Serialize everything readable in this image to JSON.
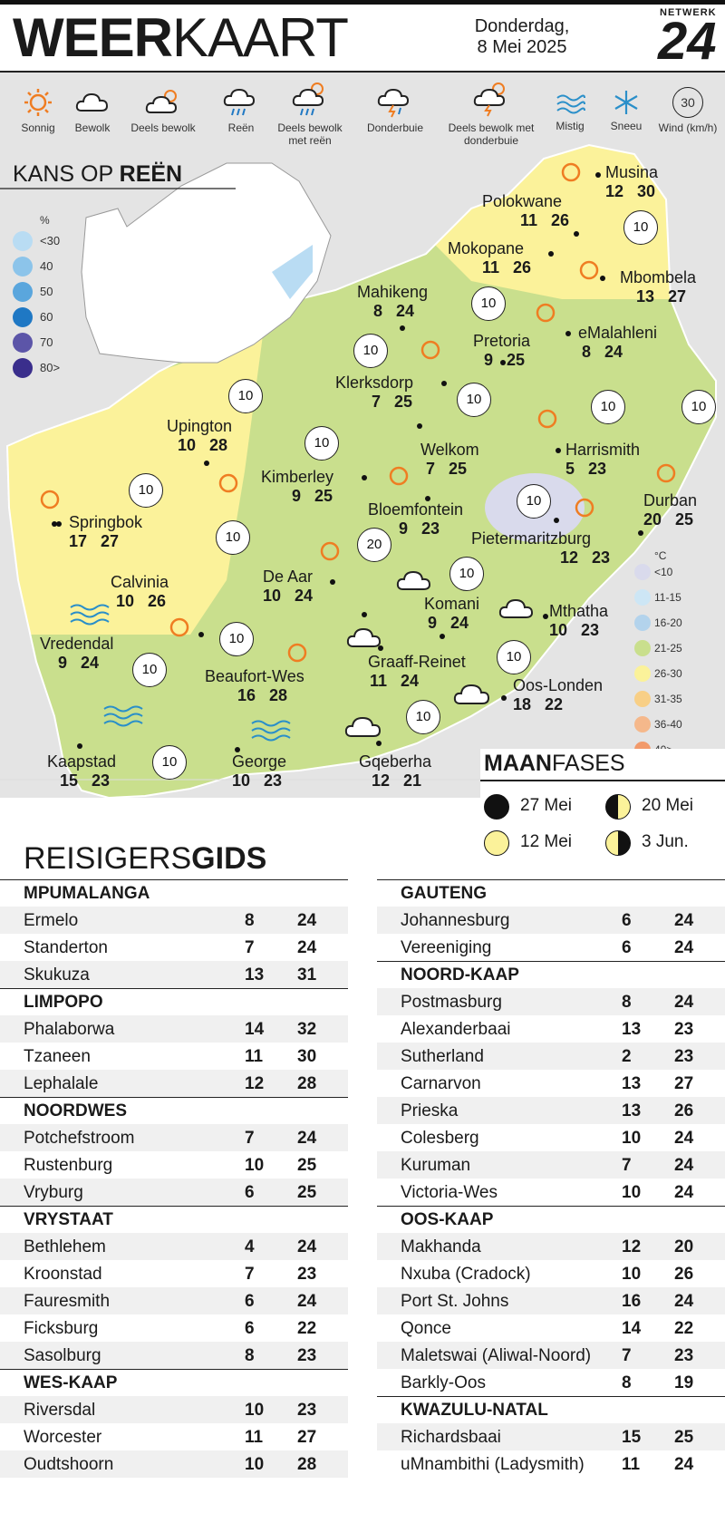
{
  "header": {
    "title_bold": "WEER",
    "title_light": "KAART",
    "date_line1": "Donderdag,",
    "date_line2": "8 Mei 2025",
    "logo_top": "NETWERK",
    "logo_num": "24"
  },
  "legend": [
    {
      "icon": "sun-icon",
      "label": "Sonnig"
    },
    {
      "icon": "cloud-icon",
      "label": "Bewolk"
    },
    {
      "icon": "partly-cloudy-icon",
      "label": "Deels bewolk"
    },
    {
      "icon": "rain-icon",
      "label": "Reën"
    },
    {
      "icon": "partly-cloudy-rain-icon",
      "label": "Deels bewolk met reën"
    },
    {
      "icon": "thunderstorm-icon",
      "label": "Donderbuie"
    },
    {
      "icon": "partly-cloudy-thunder-icon",
      "label": "Deels bewolk met donderbuie"
    },
    {
      "icon": "mist-icon",
      "label": "Mistig"
    },
    {
      "icon": "snow-icon",
      "label": "Sneeu"
    },
    {
      "icon": "wind-icon",
      "label": "Wind (km/h)",
      "value": "30"
    }
  ],
  "rain_chance": {
    "title_light": "KANS OP ",
    "title_bold": "REËN",
    "unit": "%",
    "scale": [
      {
        "label": "<30",
        "color": "#b9dcf3"
      },
      {
        "label": "40",
        "color": "#8cc4ea"
      },
      {
        "label": "50",
        "color": "#5aa6dd"
      },
      {
        "label": "60",
        "color": "#1f78c4"
      },
      {
        "label": "70",
        "color": "#5c55a8"
      },
      {
        "label": "80>",
        "color": "#3a2e8c"
      }
    ]
  },
  "cities": [
    {
      "name": "Musina",
      "min": "12",
      "max": "30"
    },
    {
      "name": "Polokwane",
      "min": "11",
      "max": "26"
    },
    {
      "name": "Mokopane",
      "min": "11",
      "max": "26"
    },
    {
      "name": "Mbombela",
      "min": "13",
      "max": "27"
    },
    {
      "name": "Mahikeng",
      "min": "8",
      "max": "24"
    },
    {
      "name": "Pretoria",
      "min": "9",
      "max": "25"
    },
    {
      "name": "eMalahleni",
      "min": "8",
      "max": "24"
    },
    {
      "name": "Klerksdorp",
      "min": "7",
      "max": "25"
    },
    {
      "name": "Upington",
      "min": "10",
      "max": "28"
    },
    {
      "name": "Welkom",
      "min": "7",
      "max": "25"
    },
    {
      "name": "Harrismith",
      "min": "5",
      "max": "23"
    },
    {
      "name": "Kimberley",
      "min": "9",
      "max": "25"
    },
    {
      "name": "Springbok",
      "min": "17",
      "max": "27"
    },
    {
      "name": "Bloemfontein",
      "min": "9",
      "max": "23"
    },
    {
      "name": "Durban",
      "min": "20",
      "max": "25"
    },
    {
      "name": "Pietermaritzburg",
      "min": "12",
      "max": "23"
    },
    {
      "name": "Calvinia",
      "min": "10",
      "max": "26"
    },
    {
      "name": "De Aar",
      "min": "10",
      "max": "24"
    },
    {
      "name": "Komani",
      "min": "9",
      "max": "24"
    },
    {
      "name": "Mthatha",
      "min": "10",
      "max": "23"
    },
    {
      "name": "Vredendal",
      "min": "9",
      "max": "24"
    },
    {
      "name": "Graaff-Reinet",
      "min": "11",
      "max": "24"
    },
    {
      "name": "Beaufort-Wes",
      "min": "16",
      "max": "28"
    },
    {
      "name": "Oos-Londen",
      "min": "18",
      "max": "22"
    },
    {
      "name": "Kaapstad",
      "min": "15",
      "max": "23"
    },
    {
      "name": "George",
      "min": "10",
      "max": "23"
    },
    {
      "name": "Gqeberha",
      "min": "12",
      "max": "21"
    }
  ],
  "wind_speed": "10",
  "wind_speed_highlight": "20",
  "temperature_scale": {
    "unit": "°C",
    "items": [
      {
        "label": "<10",
        "color": "#d9daec"
      },
      {
        "label": "11-15",
        "color": "#cde6f5"
      },
      {
        "label": "16-20",
        "color": "#b3d3ec"
      },
      {
        "label": "21-25",
        "color": "#c9df8d"
      },
      {
        "label": "26-30",
        "color": "#fbf29a"
      },
      {
        "label": "31-35",
        "color": "#f8cf86"
      },
      {
        "label": "36-40",
        "color": "#f5b88b"
      },
      {
        "label": "40>",
        "color": "#f29a6b"
      }
    ]
  },
  "moon": {
    "title_bold": "MAAN",
    "title_light": "FASES",
    "phases": [
      {
        "phase": "new-moon",
        "date": "27 Mei"
      },
      {
        "phase": "first-quarter",
        "date": "20 Mei"
      },
      {
        "phase": "full-moon",
        "date": "12 Mei"
      },
      {
        "phase": "last-quarter",
        "date": "3 Jun."
      }
    ]
  },
  "guide": {
    "title_light": "REISIGERS",
    "title_bold": "GIDS",
    "left": [
      {
        "province": "MPUMALANGA",
        "rows": [
          [
            "Ermelo",
            "8",
            "24"
          ],
          [
            "Standerton",
            "7",
            "24"
          ],
          [
            "Skukuza",
            "13",
            "31"
          ]
        ]
      },
      {
        "province": "LIMPOPO",
        "rows": [
          [
            "Phalaborwa",
            "14",
            "32"
          ],
          [
            "Tzaneen",
            "11",
            "30"
          ],
          [
            "Lephalale",
            "12",
            "28"
          ]
        ]
      },
      {
        "province": "NOORDWES",
        "rows": [
          [
            "Potchefstroom",
            "7",
            "24"
          ],
          [
            "Rustenburg",
            "10",
            "25"
          ],
          [
            "Vryburg",
            "6",
            "25"
          ]
        ]
      },
      {
        "province": "VRYSTAAT",
        "rows": [
          [
            "Bethlehem",
            "4",
            "24"
          ],
          [
            "Kroonstad",
            "7",
            "23"
          ],
          [
            "Fauresmith",
            "6",
            "24"
          ],
          [
            "Ficksburg",
            "6",
            "22"
          ],
          [
            "Sasolburg",
            "8",
            "23"
          ]
        ]
      },
      {
        "province": "WES-KAAP",
        "rows": [
          [
            "Riversdal",
            "10",
            "23"
          ],
          [
            "Worcester",
            "11",
            "27"
          ],
          [
            "Oudtshoorn",
            "10",
            "28"
          ]
        ]
      }
    ],
    "right": [
      {
        "province": "GAUTENG",
        "rows": [
          [
            "Johannesburg",
            "6",
            "24"
          ],
          [
            "Vereeniging",
            "6",
            "24"
          ]
        ]
      },
      {
        "province": "NOORD-KAAP",
        "rows": [
          [
            "Postmasburg",
            "8",
            "24"
          ],
          [
            "Alexanderbaai",
            "13",
            "23"
          ],
          [
            "Sutherland",
            "2",
            "23"
          ],
          [
            "Carnarvon",
            "13",
            "27"
          ],
          [
            "Prieska",
            "13",
            "26"
          ],
          [
            "Colesberg",
            "10",
            "24"
          ],
          [
            "Kuruman",
            "7",
            "24"
          ],
          [
            "Victoria-Wes",
            "10",
            "24"
          ]
        ]
      },
      {
        "province": "OOS-KAAP",
        "rows": [
          [
            "Makhanda",
            "12",
            "20"
          ],
          [
            "Nxuba (Cradock)",
            "10",
            "26"
          ],
          [
            "Port St. Johns",
            "16",
            "24"
          ],
          [
            "Qonce",
            "14",
            "22"
          ],
          [
            "Maletswai (Aliwal-Noord)",
            "7",
            "23"
          ],
          [
            "Barkly-Oos",
            "8",
            "19"
          ]
        ]
      },
      {
        "province": "KWAZULU-NATAL",
        "rows": [
          [
            "Richardsbaai",
            "15",
            "25"
          ],
          [
            "uMnambithi (Ladysmith)",
            "11",
            "24"
          ]
        ]
      }
    ]
  }
}
